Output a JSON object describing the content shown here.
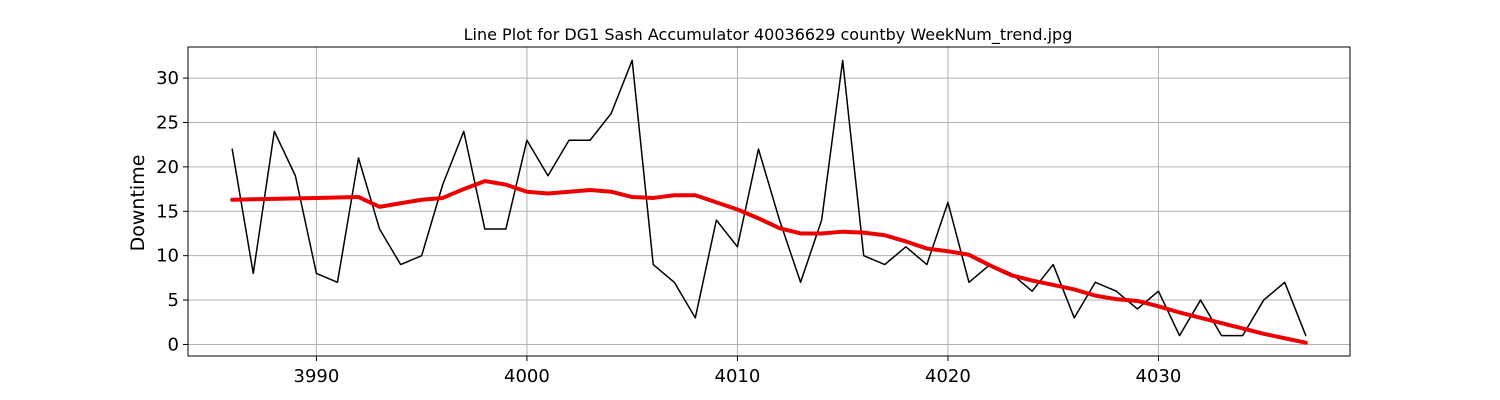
{
  "chart_data": {
    "type": "line",
    "title": "Line Plot for DG1 Sash Accumulator 40036629 countby WeekNum_trend.jpg",
    "xlabel": "",
    "ylabel": "Downtime",
    "xlim": [
      3983.9,
      4039.1
    ],
    "ylim": [
      -1.3,
      33.5
    ],
    "xticks": [
      3990,
      4000,
      4010,
      4020,
      4030
    ],
    "yticks": [
      0,
      5,
      10,
      15,
      20,
      25,
      30
    ],
    "grid": true,
    "series": [
      {
        "color": "#000000",
        "x": [
          3986,
          3987,
          3988,
          3989,
          3990,
          3991,
          3992,
          3993,
          3994,
          3995,
          3996,
          3997,
          3998,
          3999,
          4000,
          4001,
          4002,
          4003,
          4004,
          4005,
          4006,
          4007,
          4008,
          4009,
          4010,
          4011,
          4012,
          4013,
          4014,
          4015,
          4016,
          4017,
          4018,
          4019,
          4020,
          4021,
          4022,
          4023,
          4024,
          4025,
          4026,
          4027,
          4028,
          4029,
          4030,
          4031,
          4032,
          4033,
          4034,
          4035,
          4036,
          4037
        ],
        "values": [
          22,
          8,
          24,
          19,
          8,
          7,
          21,
          13,
          9,
          10,
          18,
          24,
          13,
          13,
          23,
          19,
          23,
          23,
          26,
          32,
          9,
          7,
          3,
          14,
          11,
          22,
          14,
          7,
          14,
          32,
          10,
          9,
          11,
          9,
          16,
          7,
          9,
          8,
          6,
          9,
          3,
          7,
          6,
          4,
          6,
          1,
          5,
          1,
          1,
          5,
          7,
          1
        ]
      },
      {
        "color": "#ee0000",
        "x": [
          3986,
          3987,
          3988,
          3989,
          3990,
          3991,
          3992,
          3993,
          3994,
          3995,
          3996,
          3997,
          3998,
          3999,
          4000,
          4001,
          4002,
          4003,
          4004,
          4005,
          4006,
          4007,
          4008,
          4009,
          4010,
          4011,
          4012,
          4013,
          4014,
          4015,
          4016,
          4017,
          4018,
          4019,
          4020,
          4021,
          4022,
          4023,
          4024,
          4025,
          4026,
          4027,
          4028,
          4029,
          4030,
          4031,
          4032,
          4033,
          4034,
          4035,
          4036,
          4037
        ],
        "values": [
          16.3,
          16.35,
          16.4,
          16.45,
          16.5,
          16.55,
          16.6,
          15.5,
          15.9,
          16.3,
          16.5,
          17.5,
          18.4,
          18.0,
          17.2,
          17.0,
          17.2,
          17.4,
          17.2,
          16.6,
          16.5,
          16.8,
          16.8,
          16.0,
          15.2,
          14.2,
          13.1,
          12.5,
          12.5,
          12.7,
          12.6,
          12.3,
          11.6,
          10.8,
          10.5,
          10.1,
          8.9,
          7.8,
          7.2,
          6.7,
          6.2,
          5.5,
          5.1,
          4.9,
          4.3,
          3.6,
          3.0,
          2.4,
          1.8,
          1.2,
          0.7,
          0.2
        ]
      }
    ]
  }
}
